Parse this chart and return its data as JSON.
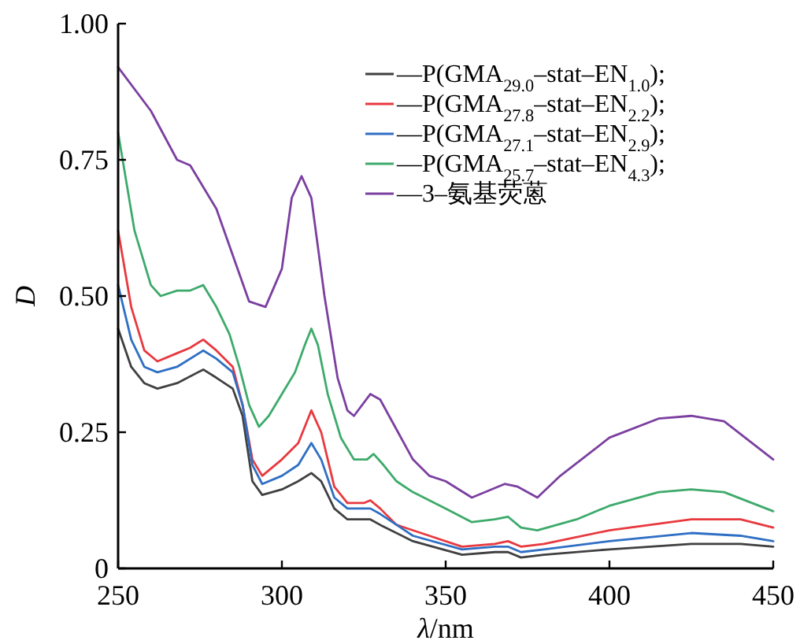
{
  "chart_data": {
    "type": "line",
    "xlabel": "λ/nm",
    "ylabel": "D",
    "xlim": [
      250,
      450
    ],
    "xticks": [
      250,
      300,
      350,
      400,
      450
    ],
    "ylim": [
      0,
      1
    ],
    "yticks": [
      0,
      {
        "value": 0.25,
        "label": "0.25"
      },
      {
        "value": 0.5,
        "label": "0.50"
      },
      {
        "value": 0.75,
        "label": "0.75"
      },
      {
        "value": 1,
        "label": "1.00"
      }
    ],
    "grid": false,
    "legend": "top right",
    "marker": "none",
    "line_style": "solid",
    "series": [
      {
        "name": "—P(GMA$_{29.0}$–stat–EN$_{1.0}$);",
        "color": "#404040",
        "x": [
          250,
          254,
          258,
          262,
          268,
          276,
          280,
          285,
          288,
          291,
          294,
          300,
          305,
          309,
          312,
          316,
          320,
          325,
          327,
          330,
          340,
          355,
          365,
          369,
          373,
          380,
          400,
          425,
          440,
          450
        ],
        "values": [
          0.44,
          0.37,
          0.34,
          0.33,
          0.34,
          0.365,
          0.35,
          0.33,
          0.28,
          0.16,
          0.135,
          0.145,
          0.16,
          0.175,
          0.16,
          0.11,
          0.09,
          0.09,
          0.09,
          0.08,
          0.05,
          0.025,
          0.03,
          0.03,
          0.02,
          0.025,
          0.035,
          0.045,
          0.045,
          0.04
        ]
      },
      {
        "name": "—P(GMA$_{27.8}$–stat–EN$_{2.2}$);",
        "color": "#e8393f",
        "x": [
          250,
          254,
          258,
          262,
          268,
          272,
          276,
          280,
          285,
          288,
          291,
          294,
          300,
          305,
          309,
          312,
          316,
          320,
          325,
          327,
          330,
          335,
          345,
          355,
          365,
          369,
          373,
          380,
          400,
          425,
          440,
          450
        ],
        "values": [
          0.62,
          0.48,
          0.4,
          0.38,
          0.395,
          0.405,
          0.42,
          0.4,
          0.37,
          0.3,
          0.2,
          0.17,
          0.2,
          0.23,
          0.29,
          0.25,
          0.15,
          0.12,
          0.12,
          0.125,
          0.11,
          0.08,
          0.06,
          0.04,
          0.045,
          0.05,
          0.04,
          0.045,
          0.07,
          0.09,
          0.09,
          0.075
        ]
      },
      {
        "name": "—P(GMA$_{27.1}$–stat–EN$_{2.9}$);",
        "color": "#2f6fc4",
        "x": [
          250,
          254,
          258,
          262,
          268,
          276,
          280,
          285,
          288,
          291,
          294,
          300,
          305,
          309,
          312,
          316,
          320,
          325,
          327,
          330,
          340,
          355,
          365,
          369,
          373,
          380,
          400,
          425,
          440,
          450
        ],
        "values": [
          0.52,
          0.42,
          0.37,
          0.36,
          0.37,
          0.4,
          0.385,
          0.36,
          0.3,
          0.19,
          0.155,
          0.17,
          0.19,
          0.23,
          0.2,
          0.13,
          0.11,
          0.11,
          0.11,
          0.1,
          0.06,
          0.035,
          0.04,
          0.04,
          0.03,
          0.035,
          0.05,
          0.065,
          0.06,
          0.05
        ]
      },
      {
        "name": "—P(GMA$_{25.7}$–stat–EN$_{4.3}$);",
        "color": "#3daa6b",
        "x": [
          250,
          255,
          260,
          263,
          268,
          272,
          276,
          280,
          284,
          287,
          290,
          293,
          296,
          300,
          304,
          307,
          309,
          311,
          314,
          318,
          322,
          326,
          328,
          331,
          335,
          340,
          350,
          358,
          365,
          369,
          373,
          378,
          390,
          400,
          415,
          425,
          435,
          450
        ],
        "values": [
          0.8,
          0.62,
          0.52,
          0.5,
          0.51,
          0.51,
          0.52,
          0.48,
          0.43,
          0.37,
          0.3,
          0.26,
          0.28,
          0.32,
          0.36,
          0.41,
          0.44,
          0.41,
          0.32,
          0.24,
          0.2,
          0.2,
          0.21,
          0.19,
          0.16,
          0.14,
          0.11,
          0.085,
          0.09,
          0.095,
          0.075,
          0.07,
          0.09,
          0.115,
          0.14,
          0.145,
          0.14,
          0.105
        ]
      },
      {
        "name": "—3–氨基荧蒽",
        "color": "#7b3fa0",
        "x": [
          250,
          260,
          268,
          272,
          280,
          290,
          295,
          300,
          303,
          306,
          309,
          313,
          317,
          320,
          322,
          327,
          330,
          340,
          345,
          350,
          358,
          368,
          372,
          378,
          385,
          400,
          415,
          425,
          435,
          450
        ],
        "values": [
          0.92,
          0.84,
          0.75,
          0.74,
          0.66,
          0.49,
          0.48,
          0.55,
          0.68,
          0.72,
          0.68,
          0.5,
          0.35,
          0.29,
          0.28,
          0.32,
          0.31,
          0.2,
          0.17,
          0.16,
          0.13,
          0.155,
          0.15,
          0.13,
          0.17,
          0.24,
          0.275,
          0.28,
          0.27,
          0.2
        ]
      }
    ]
  }
}
